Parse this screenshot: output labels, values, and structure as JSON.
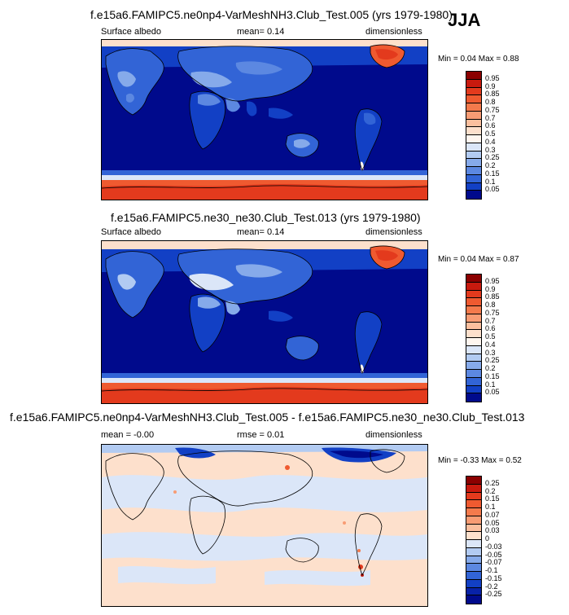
{
  "season": "JJA",
  "panels": [
    {
      "title": "f.e15a6.FAMIPC5.ne0np4-VarMeshNH3.Club_Test.005 (yrs 1979-1980)",
      "left": "Surface albedo",
      "mid": "mean=  0.14",
      "right": "dimensionless",
      "minmax": "Min =  0.04 Max =  0.88"
    },
    {
      "title": "f.e15a6.FAMIPC5.ne30_ne30.Club_Test.013 (yrs 1979-1980)",
      "left": "Surface albedo",
      "mid": "mean=  0.14",
      "right": "dimensionless",
      "minmax": "Min =  0.04 Max =  0.87"
    },
    {
      "title": "f.e15a6.FAMIPC5.ne0np4-VarMeshNH3.Club_Test.005 - f.e15a6.FAMIPC5.ne30_ne30.Club_Test.013",
      "left": "mean = -0.00",
      "mid": "rmse =  0.01",
      "right": "dimensionless",
      "minmax": "Min = -0.33 Max =  0.52"
    }
  ],
  "colorbars": {
    "albedo": {
      "labels": [
        "0.95",
        "0.9",
        "0.85",
        "0.8",
        "0.75",
        "0.7",
        "0.6",
        "0.5",
        "0.4",
        "0.3",
        "0.25",
        "0.2",
        "0.15",
        "0.1",
        "0.05"
      ],
      "colors": [
        "#8b0000",
        "#c81a0e",
        "#e33a1d",
        "#ef5a30",
        "#f47a4c",
        "#f89c74",
        "#fbbf9e",
        "#fde0cc",
        "#fff6ef",
        "#dbe6f8",
        "#b2cbf2",
        "#86aaea",
        "#5c88e1",
        "#3264d6",
        "#1240c5",
        "#000a8c"
      ]
    },
    "diff": {
      "labels": [
        "0.25",
        "0.2",
        "0.15",
        "0.1",
        "0.07",
        "0.05",
        "0.03",
        "0",
        "-0.03",
        "-0.05",
        "-0.07",
        "-0.1",
        "-0.15",
        "-0.2",
        "-0.25"
      ],
      "colors": [
        "#8b0000",
        "#c81a0e",
        "#e33a1d",
        "#ef5a30",
        "#f47a4c",
        "#f89c74",
        "#fbbf9e",
        "#fde0cc",
        "#dbe6f8",
        "#b2cbf2",
        "#86aaea",
        "#5c88e1",
        "#3264d6",
        "#1240c5",
        "#0822a8",
        "#000a8c"
      ]
    }
  },
  "chart_data": [
    {
      "type": "heatmap",
      "title": "f.e15a6.FAMIPC5.ne0np4-VarMeshNH3.Club_Test.005 (yrs 1979-1980)",
      "variable": "Surface albedo",
      "units": "dimensionless",
      "mean": 0.14,
      "min": 0.04,
      "max": 0.88,
      "contour_levels": [
        0.05,
        0.1,
        0.15,
        0.2,
        0.25,
        0.3,
        0.4,
        0.5,
        0.6,
        0.7,
        0.75,
        0.8,
        0.85,
        0.9,
        0.95
      ]
    },
    {
      "type": "heatmap",
      "title": "f.e15a6.FAMIPC5.ne30_ne30.Club_Test.013 (yrs 1979-1980)",
      "variable": "Surface albedo",
      "units": "dimensionless",
      "mean": 0.14,
      "min": 0.04,
      "max": 0.87,
      "contour_levels": [
        0.05,
        0.1,
        0.15,
        0.2,
        0.25,
        0.3,
        0.4,
        0.5,
        0.6,
        0.7,
        0.75,
        0.8,
        0.85,
        0.9,
        0.95
      ]
    },
    {
      "type": "heatmap",
      "title": "f.e15a6.FAMIPC5.ne0np4-VarMeshNH3.Club_Test.005 - f.e15a6.FAMIPC5.ne30_ne30.Club_Test.013",
      "units": "dimensionless",
      "mean": -0.0,
      "rmse": 0.01,
      "min": -0.33,
      "max": 0.52,
      "contour_levels": [
        -0.25,
        -0.2,
        -0.15,
        -0.1,
        -0.07,
        -0.05,
        -0.03,
        0,
        0.03,
        0.05,
        0.07,
        0.1,
        0.15,
        0.2,
        0.25
      ]
    }
  ]
}
